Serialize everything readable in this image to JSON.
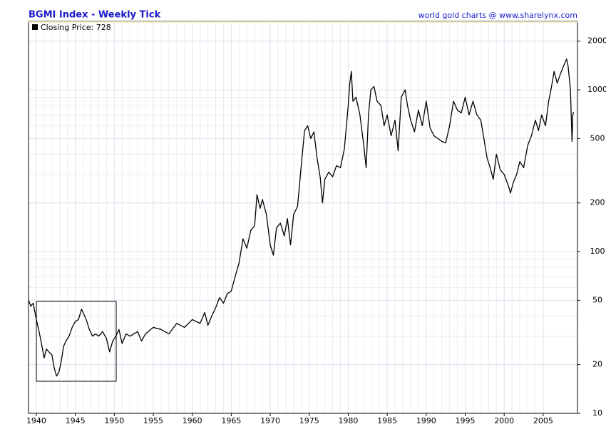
{
  "chart_data": {
    "type": "line",
    "title": "BGMI Index - Weekly Tick",
    "source": "world gold charts @ www.sharelynx.com",
    "x": [
      1939.0,
      1939.3,
      1939.6,
      1940.0,
      1940.3,
      1940.6,
      1941.0,
      1941.3,
      1941.6,
      1942.0,
      1942.3,
      1942.6,
      1942.9,
      1943.2,
      1943.5,
      1943.8,
      1944.2,
      1944.6,
      1945.0,
      1945.4,
      1945.8,
      1946.0,
      1946.4,
      1946.8,
      1947.2,
      1947.6,
      1948.0,
      1948.5,
      1949.0,
      1949.4,
      1949.8,
      1950.2,
      1950.6,
      1951.0,
      1951.5,
      1952.0,
      1953.0,
      1953.5,
      1954.0,
      1955.0,
      1956.0,
      1957.0,
      1958.0,
      1959.0,
      1960.0,
      1961.0,
      1961.6,
      1962.0,
      1962.5,
      1963.0,
      1963.5,
      1964.0,
      1964.5,
      1965.0,
      1965.5,
      1966.0,
      1966.5,
      1967.0,
      1967.5,
      1968.0,
      1968.3,
      1968.7,
      1969.0,
      1969.5,
      1970.0,
      1970.4,
      1970.8,
      1971.3,
      1971.8,
      1972.2,
      1972.6,
      1973.0,
      1973.5,
      1974.0,
      1974.4,
      1974.8,
      1975.2,
      1975.6,
      1976.0,
      1976.4,
      1976.7,
      1977.0,
      1977.5,
      1978.0,
      1978.5,
      1979.0,
      1979.5,
      1980.0,
      1980.2,
      1980.4,
      1980.6,
      1981.0,
      1981.5,
      1982.0,
      1982.3,
      1982.6,
      1982.9,
      1983.3,
      1983.7,
      1984.2,
      1984.6,
      1985.0,
      1985.5,
      1986.0,
      1986.4,
      1986.8,
      1987.3,
      1987.6,
      1988.0,
      1988.5,
      1989.0,
      1989.5,
      1990.0,
      1990.5,
      1991.0,
      1991.5,
      1992.0,
      1992.5,
      1993.0,
      1993.5,
      1994.0,
      1994.5,
      1995.0,
      1995.5,
      1996.0,
      1996.5,
      1997.0,
      1997.4,
      1997.8,
      1998.2,
      1998.6,
      1999.0,
      1999.5,
      2000.0,
      2000.6,
      2000.8,
      2001.2,
      2001.6,
      2002.0,
      2002.5,
      2003.0,
      2003.5,
      2004.0,
      2004.4,
      2004.8,
      2005.3,
      2005.7,
      2006.0,
      2006.4,
      2006.8,
      2007.2,
      2007.6,
      2008.0,
      2008.2,
      2008.5,
      2008.7,
      2008.8,
      2008.9
    ],
    "series": [
      {
        "name": "Closing Price: 728",
        "color": "#000000",
        "values": [
          50,
          46,
          48,
          38,
          33,
          28,
          22,
          25,
          24,
          23,
          19,
          17,
          18,
          21,
          26,
          28,
          30,
          34,
          37,
          38,
          44,
          42,
          38,
          33,
          30,
          31,
          30,
          32,
          29,
          24,
          28,
          30,
          33,
          27,
          31,
          30,
          32,
          28,
          31,
          34,
          33,
          31,
          36,
          34,
          38,
          36,
          42,
          35,
          40,
          45,
          52,
          48,
          55,
          57,
          70,
          85,
          120,
          105,
          135,
          145,
          225,
          185,
          210,
          170,
          110,
          95,
          140,
          150,
          125,
          160,
          110,
          170,
          190,
          350,
          560,
          600,
          500,
          550,
          380,
          290,
          200,
          280,
          310,
          290,
          340,
          330,
          430,
          800,
          1100,
          1300,
          850,
          900,
          700,
          450,
          330,
          700,
          1000,
          1050,
          850,
          800,
          600,
          700,
          520,
          650,
          420,
          900,
          1000,
          800,
          650,
          550,
          750,
          600,
          850,
          580,
          520,
          500,
          480,
          470,
          600,
          850,
          750,
          720,
          900,
          700,
          850,
          700,
          650,
          500,
          380,
          330,
          280,
          400,
          320,
          300,
          250,
          230,
          270,
          300,
          360,
          330,
          450,
          520,
          650,
          560,
          700,
          600,
          850,
          1000,
          1300,
          1100,
          1250,
          1400,
          1550,
          1400,
          1000,
          480,
          700,
          728
        ]
      }
    ],
    "xlim": [
      1939,
      2009.4
    ],
    "xticks": [
      1940,
      1945,
      1950,
      1955,
      1960,
      1965,
      1970,
      1975,
      1980,
      1985,
      1990,
      1995,
      2000,
      2005
    ],
    "ylim": [
      10,
      2650
    ],
    "yticks": [
      10,
      20,
      50,
      100,
      200,
      500,
      1000,
      2000
    ],
    "log_y": true,
    "grid": true
  }
}
